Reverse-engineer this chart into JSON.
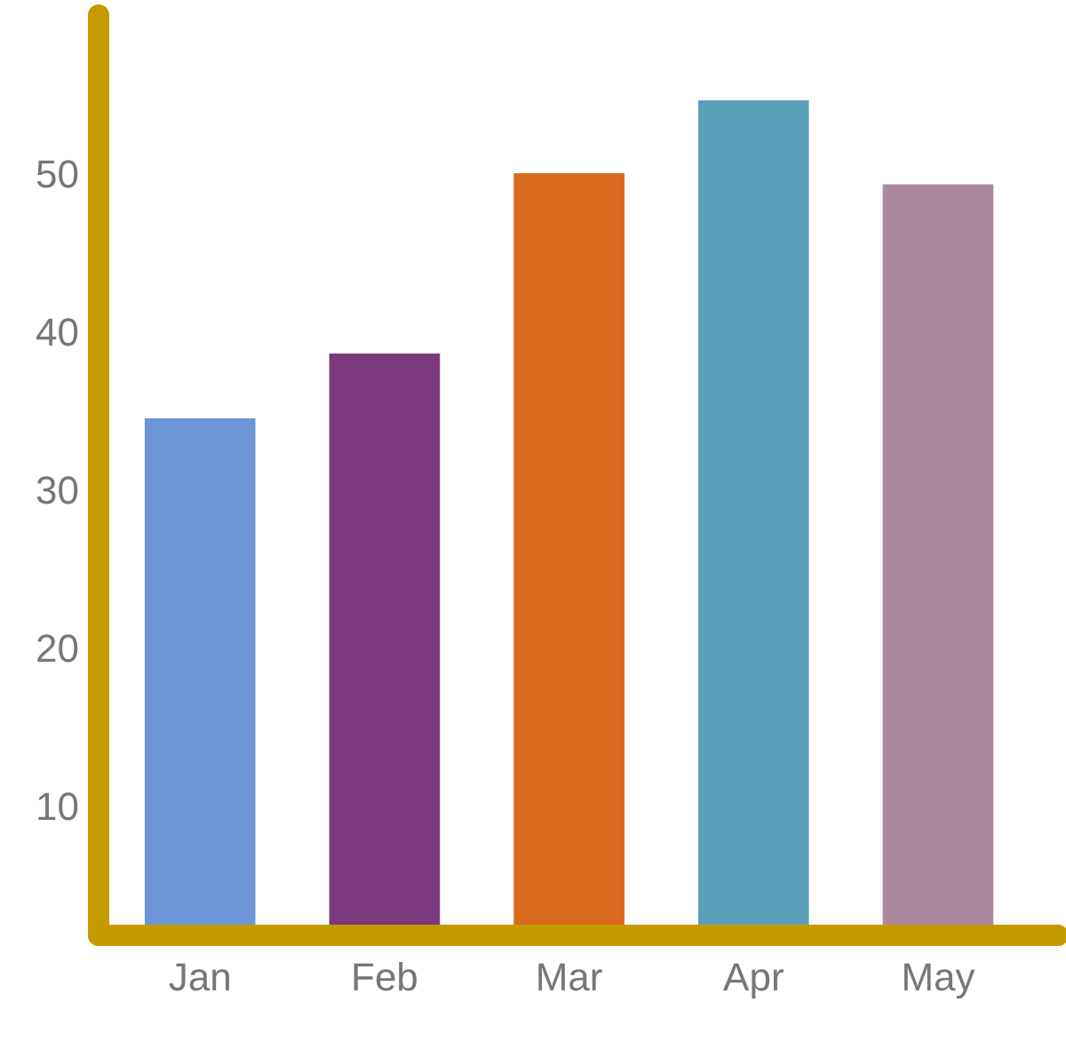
{
  "chart_data": {
    "type": "bar",
    "categories": [
      "Jan",
      "Feb",
      "Mar",
      "Apr",
      "May"
    ],
    "values": [
      34.5,
      38.6,
      50,
      54.6,
      49.3
    ],
    "colors": [
      "#6a95d6",
      "#7a3a7d",
      "#d9691c",
      "#5a9fba",
      "#ab899f"
    ],
    "ylim": [
      1.8,
      60
    ],
    "yticks": [
      10,
      20,
      30,
      40,
      50
    ],
    "grid": false
  }
}
